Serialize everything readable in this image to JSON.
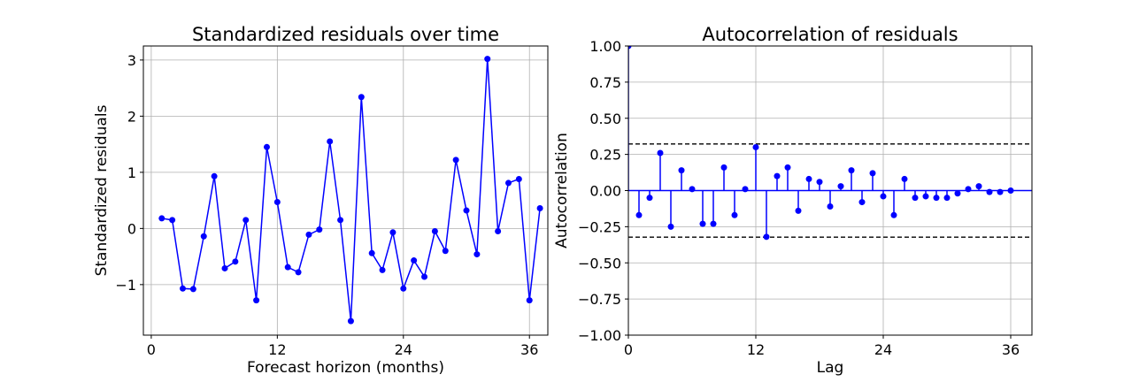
{
  "chart_data": [
    {
      "type": "line",
      "title": "Standardized residuals over time",
      "xlabel": "Forecast horizon (months)",
      "ylabel": "Standardized residuals",
      "xlim": [
        -0.75,
        37.75
      ],
      "ylim": [
        -1.9,
        3.25
      ],
      "xticks": [
        0,
        12,
        24,
        36
      ],
      "yticks": [
        -1,
        0,
        1,
        2,
        3
      ],
      "ytick_labels": [
        "−1",
        "0",
        "1",
        "2",
        "3"
      ],
      "grid": true,
      "color": "#0000ff",
      "x": [
        1,
        2,
        3,
        4,
        5,
        6,
        7,
        8,
        9,
        10,
        11,
        12,
        13,
        14,
        15,
        16,
        17,
        18,
        19,
        20,
        21,
        22,
        23,
        24,
        25,
        26,
        27,
        28,
        29,
        30,
        31,
        32,
        33,
        34,
        35,
        36,
        37
      ],
      "values": [
        0.18,
        0.15,
        -1.07,
        -1.08,
        -0.14,
        0.93,
        -0.71,
        -0.59,
        0.15,
        -1.28,
        1.45,
        0.47,
        -0.69,
        -0.78,
        -0.11,
        -0.02,
        1.55,
        0.15,
        -1.65,
        2.34,
        -0.44,
        -0.74,
        -0.07,
        -1.07,
        -0.57,
        -0.86,
        -0.05,
        -0.4,
        1.22,
        0.32,
        -0.46,
        3.02,
        -0.05,
        0.81,
        0.88,
        -1.28,
        0.36
      ]
    },
    {
      "type": "stem",
      "title": "Autocorrelation of residuals",
      "xlabel": "Lag",
      "ylabel": "Autocorrelation",
      "xlim": [
        0,
        38
      ],
      "ylim": [
        -1.0,
        1.0
      ],
      "xticks": [
        0,
        12,
        24,
        36
      ],
      "yticks": [
        -1.0,
        -0.75,
        -0.5,
        -0.25,
        0.0,
        0.25,
        0.5,
        0.75,
        1.0
      ],
      "ytick_labels": [
        "−1.00",
        "−0.75",
        "−0.50",
        "−0.25",
        "0.00",
        "0.25",
        "0.50",
        "0.75",
        "1.00"
      ],
      "grid": true,
      "color": "#0000ff",
      "confidence_bounds": [
        0.322,
        -0.322
      ],
      "x": [
        0,
        1,
        2,
        3,
        4,
        5,
        6,
        7,
        8,
        9,
        10,
        11,
        12,
        13,
        14,
        15,
        16,
        17,
        18,
        19,
        20,
        21,
        22,
        23,
        24,
        25,
        26,
        27,
        28,
        29,
        30,
        31,
        32,
        33,
        34,
        35,
        36
      ],
      "values": [
        1.0,
        -0.17,
        -0.05,
        0.26,
        -0.25,
        0.14,
        0.01,
        -0.23,
        -0.23,
        0.16,
        -0.17,
        0.01,
        0.3,
        -0.32,
        0.1,
        0.16,
        -0.14,
        0.08,
        0.06,
        -0.11,
        0.03,
        0.14,
        -0.08,
        0.12,
        -0.04,
        -0.17,
        0.08,
        -0.05,
        -0.04,
        -0.05,
        -0.05,
        -0.02,
        0.01,
        0.03,
        -0.01,
        -0.01,
        0.0
      ]
    }
  ]
}
